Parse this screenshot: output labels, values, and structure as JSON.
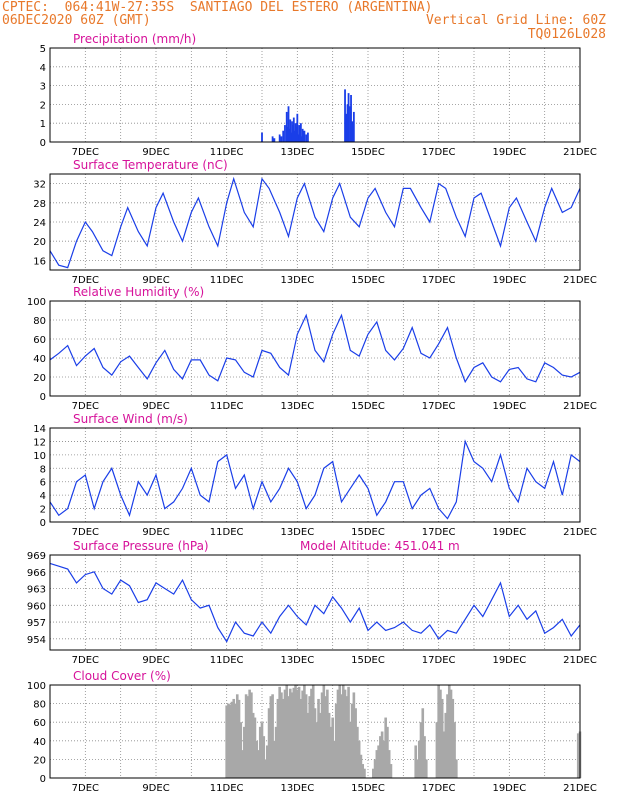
{
  "header": {
    "line1_left": "CPTEC:  064:41W-27:35S  SANTIAGO DEL ESTERO (ARGENTINA)",
    "line2_left": "06DEC2020 60Z (GMT)",
    "line2_right": "Vertical Grid Line: 60Z",
    "line3_right": "TQ0126L028"
  },
  "colors": {
    "header": "#e8782a",
    "title": "#d6129a",
    "series": "#1a3ee8",
    "cloud": "#a8a8a8",
    "grid": "#8a8a8a"
  },
  "x_tick_labels": [
    "7DEC",
    "9DEC",
    "11DEC",
    "13DEC",
    "15DEC",
    "17DEC",
    "19DEC",
    "21DEC"
  ],
  "chart_data": [
    {
      "id": "precip",
      "type": "bar",
      "title": "Precipitation (mm/h)",
      "xlim": [
        6.0,
        21.0
      ],
      "ylim": [
        0,
        5
      ],
      "yticks": [
        0,
        1,
        2,
        3,
        4,
        5
      ],
      "x": [
        12.0,
        12.3,
        12.35,
        12.5,
        12.55,
        12.6,
        12.65,
        12.7,
        12.72,
        12.75,
        12.77,
        12.8,
        12.82,
        12.85,
        12.87,
        12.9,
        12.92,
        12.95,
        12.97,
        13.0,
        13.02,
        13.05,
        13.07,
        13.1,
        13.12,
        13.15,
        13.2,
        13.25,
        13.3,
        14.35,
        14.38,
        14.4,
        14.42,
        14.45,
        14.5,
        14.52,
        14.55,
        14.58,
        14.6
      ],
      "values": [
        0.5,
        0.3,
        0.2,
        0.4,
        0.3,
        0.6,
        0.9,
        1.6,
        0.8,
        1.9,
        0.7,
        1.2,
        0.5,
        1.1,
        0.9,
        1.3,
        0.6,
        1.0,
        0.8,
        1.5,
        0.4,
        0.9,
        0.6,
        1.0,
        0.3,
        0.7,
        0.6,
        0.4,
        0.5,
        2.8,
        1.5,
        1.2,
        2.0,
        2.6,
        1.9,
        2.5,
        1.1,
        0.8,
        1.6
      ]
    },
    {
      "id": "temp",
      "type": "line",
      "title": "Surface Temperature (nC)",
      "xlim": [
        6.0,
        21.0
      ],
      "ylim": [
        14,
        34
      ],
      "yticks": [
        16,
        20,
        24,
        28,
        32
      ],
      "x": [
        6.0,
        6.25,
        6.5,
        6.75,
        7.0,
        7.2,
        7.5,
        7.75,
        8.0,
        8.2,
        8.5,
        8.75,
        9.0,
        9.2,
        9.5,
        9.75,
        10.0,
        10.2,
        10.5,
        10.75,
        11.0,
        11.2,
        11.5,
        11.75,
        12.0,
        12.2,
        12.5,
        12.75,
        13.0,
        13.2,
        13.5,
        13.75,
        14.0,
        14.2,
        14.5,
        14.75,
        15.0,
        15.2,
        15.5,
        15.75,
        16.0,
        16.2,
        16.5,
        16.75,
        17.0,
        17.2,
        17.5,
        17.75,
        18.0,
        18.2,
        18.5,
        18.75,
        19.0,
        19.2,
        19.5,
        19.75,
        20.0,
        20.2,
        20.5,
        20.75,
        21.0
      ],
      "values": [
        18,
        15,
        14.5,
        20,
        24,
        22,
        18,
        17,
        23,
        27,
        22,
        19,
        27,
        30,
        24,
        20,
        26,
        29,
        23,
        19,
        28,
        33,
        26,
        23,
        33,
        31,
        26,
        21,
        29,
        32,
        25,
        22,
        29,
        32,
        25,
        23,
        29,
        31,
        26,
        23,
        31,
        31,
        27,
        24,
        32,
        31,
        25,
        21,
        29,
        30,
        24,
        19,
        27,
        29,
        24,
        20,
        27,
        31,
        26,
        27,
        31
      ]
    },
    {
      "id": "rh",
      "type": "line",
      "title": "Relative Humidity (%)",
      "xlim": [
        6.0,
        21.0
      ],
      "ylim": [
        0,
        100
      ],
      "yticks": [
        0,
        20,
        40,
        60,
        80,
        100
      ],
      "x": [
        6.0,
        6.25,
        6.5,
        6.75,
        7.0,
        7.25,
        7.5,
        7.75,
        8.0,
        8.25,
        8.5,
        8.75,
        9.0,
        9.25,
        9.5,
        9.75,
        10.0,
        10.25,
        10.5,
        10.75,
        11.0,
        11.25,
        11.5,
        11.75,
        12.0,
        12.25,
        12.5,
        12.75,
        13.0,
        13.25,
        13.5,
        13.75,
        14.0,
        14.25,
        14.5,
        14.75,
        15.0,
        15.25,
        15.5,
        15.75,
        16.0,
        16.25,
        16.5,
        16.75,
        17.0,
        17.25,
        17.5,
        17.75,
        18.0,
        18.25,
        18.5,
        18.75,
        19.0,
        19.25,
        19.5,
        19.75,
        20.0,
        20.25,
        20.5,
        20.75,
        21.0
      ],
      "values": [
        38,
        45,
        53,
        32,
        42,
        50,
        30,
        22,
        36,
        42,
        30,
        18,
        35,
        48,
        28,
        18,
        38,
        38,
        22,
        16,
        40,
        38,
        25,
        20,
        48,
        45,
        30,
        22,
        65,
        85,
        48,
        36,
        65,
        85,
        48,
        42,
        65,
        78,
        48,
        38,
        50,
        72,
        45,
        40,
        55,
        72,
        40,
        15,
        30,
        35,
        20,
        15,
        28,
        30,
        18,
        15,
        35,
        30,
        22,
        20,
        25
      ]
    },
    {
      "id": "wind",
      "type": "line",
      "title": "Surface Wind (m/s)",
      "xlim": [
        6.0,
        21.0
      ],
      "ylim": [
        0,
        14
      ],
      "yticks": [
        0,
        2,
        4,
        6,
        8,
        10,
        12,
        14
      ],
      "x": [
        6.0,
        6.25,
        6.5,
        6.75,
        7.0,
        7.25,
        7.5,
        7.75,
        8.0,
        8.25,
        8.5,
        8.75,
        9.0,
        9.25,
        9.5,
        9.75,
        10.0,
        10.25,
        10.5,
        10.75,
        11.0,
        11.25,
        11.5,
        11.75,
        12.0,
        12.25,
        12.5,
        12.75,
        13.0,
        13.25,
        13.5,
        13.75,
        14.0,
        14.25,
        14.5,
        14.75,
        15.0,
        15.25,
        15.5,
        15.75,
        16.0,
        16.25,
        16.5,
        16.75,
        17.0,
        17.25,
        17.5,
        17.75,
        18.0,
        18.25,
        18.5,
        18.75,
        19.0,
        19.25,
        19.5,
        19.75,
        20.0,
        20.25,
        20.5,
        20.75,
        21.0
      ],
      "values": [
        3,
        1,
        2,
        6,
        7,
        2,
        6,
        8,
        4,
        1,
        6,
        4,
        7,
        2,
        3,
        5,
        8,
        4,
        3,
        9,
        10,
        5,
        7,
        2,
        6,
        3,
        5,
        8,
        6,
        2,
        4,
        8,
        9,
        3,
        5,
        7,
        5,
        1,
        3,
        6,
        6,
        2,
        4,
        5,
        2,
        0.5,
        3,
        12,
        9,
        8,
        6,
        10,
        5,
        3,
        8,
        6,
        5,
        9,
        4,
        10,
        9
      ]
    },
    {
      "id": "pressure",
      "type": "line",
      "title": "Surface Pressure (hPa)",
      "annotation": "Model Altitude: 451.041 m",
      "xlim": [
        6.0,
        21.0
      ],
      "ylim": [
        952,
        969
      ],
      "yticks": [
        954,
        957,
        960,
        963,
        966,
        969
      ],
      "x": [
        6.0,
        6.25,
        6.5,
        6.75,
        7.0,
        7.25,
        7.5,
        7.75,
        8.0,
        8.25,
        8.5,
        8.75,
        9.0,
        9.25,
        9.5,
        9.75,
        10.0,
        10.25,
        10.5,
        10.75,
        11.0,
        11.25,
        11.5,
        11.75,
        12.0,
        12.25,
        12.5,
        12.75,
        13.0,
        13.25,
        13.5,
        13.75,
        14.0,
        14.25,
        14.5,
        14.75,
        15.0,
        15.25,
        15.5,
        15.75,
        16.0,
        16.25,
        16.5,
        16.75,
        17.0,
        17.25,
        17.5,
        17.75,
        18.0,
        18.25,
        18.5,
        18.75,
        19.0,
        19.25,
        19.5,
        19.75,
        20.0,
        20.25,
        20.5,
        20.75,
        21.0
      ],
      "values": [
        967.5,
        967,
        966.5,
        964,
        965.5,
        966,
        963,
        962,
        964.5,
        963.5,
        960.5,
        961,
        964,
        963,
        962,
        964.5,
        961,
        959.5,
        960,
        956,
        953.5,
        957,
        955,
        954.5,
        957,
        955,
        958,
        960,
        958,
        956.5,
        960,
        958.5,
        961.5,
        959.5,
        957,
        959.5,
        955.5,
        957,
        955.5,
        956,
        957,
        955.5,
        955,
        956.5,
        954,
        955.5,
        955,
        957.5,
        960,
        958,
        961,
        964,
        958,
        960,
        957.5,
        959,
        955,
        956,
        957.5,
        954.5,
        956.5
      ]
    },
    {
      "id": "cloud",
      "type": "bar",
      "title": "Cloud Cover (%)",
      "xlim": [
        6.0,
        21.0
      ],
      "ylim": [
        0,
        100
      ],
      "yticks": [
        0,
        20,
        40,
        60,
        80,
        100
      ],
      "x": [
        11.0,
        11.05,
        11.1,
        11.15,
        11.2,
        11.25,
        11.3,
        11.35,
        11.4,
        11.45,
        11.5,
        11.55,
        11.6,
        11.65,
        11.7,
        11.75,
        11.8,
        11.85,
        11.9,
        11.95,
        12.0,
        12.05,
        12.1,
        12.15,
        12.2,
        12.25,
        12.3,
        12.35,
        12.4,
        12.45,
        12.5,
        12.55,
        12.6,
        12.65,
        12.7,
        12.75,
        12.8,
        12.85,
        12.9,
        12.95,
        13.0,
        13.05,
        13.1,
        13.15,
        13.2,
        13.25,
        13.3,
        13.35,
        13.4,
        13.45,
        13.5,
        13.55,
        13.6,
        13.65,
        13.7,
        13.75,
        13.8,
        13.85,
        13.9,
        13.95,
        14.0,
        14.05,
        14.1,
        14.15,
        14.2,
        14.25,
        14.3,
        14.35,
        14.4,
        14.45,
        14.5,
        14.55,
        14.6,
        14.65,
        14.7,
        14.75,
        14.8,
        14.85,
        14.9,
        15.15,
        15.2,
        15.25,
        15.3,
        15.35,
        15.4,
        15.45,
        15.5,
        15.55,
        15.6,
        15.65,
        16.35,
        16.4,
        16.45,
        16.5,
        16.55,
        16.6,
        16.65,
        16.95,
        17.0,
        17.05,
        17.1,
        17.15,
        17.2,
        17.25,
        17.3,
        17.35,
        17.4,
        17.45,
        17.5,
        20.95,
        21.0
      ],
      "values": [
        78,
        80,
        79,
        82,
        85,
        80,
        90,
        84,
        60,
        30,
        55,
        90,
        88,
        95,
        92,
        70,
        65,
        40,
        30,
        55,
        60,
        45,
        20,
        35,
        75,
        88,
        90,
        40,
        55,
        85,
        98,
        92,
        85,
        95,
        100,
        88,
        96,
        92,
        97,
        100,
        95,
        98,
        85,
        94,
        100,
        90,
        70,
        88,
        96,
        100,
        75,
        60,
        85,
        70,
        92,
        100,
        88,
        95,
        70,
        55,
        65,
        40,
        80,
        95,
        100,
        90,
        100,
        95,
        88,
        98,
        60,
        80,
        92,
        75,
        55,
        40,
        25,
        15,
        10,
        10,
        20,
        30,
        35,
        45,
        50,
        40,
        65,
        55,
        30,
        15,
        35,
        20,
        40,
        60,
        75,
        45,
        20,
        60,
        100,
        95,
        85,
        50,
        70,
        90,
        100,
        95,
        85,
        60,
        20,
        48,
        50
      ]
    }
  ]
}
